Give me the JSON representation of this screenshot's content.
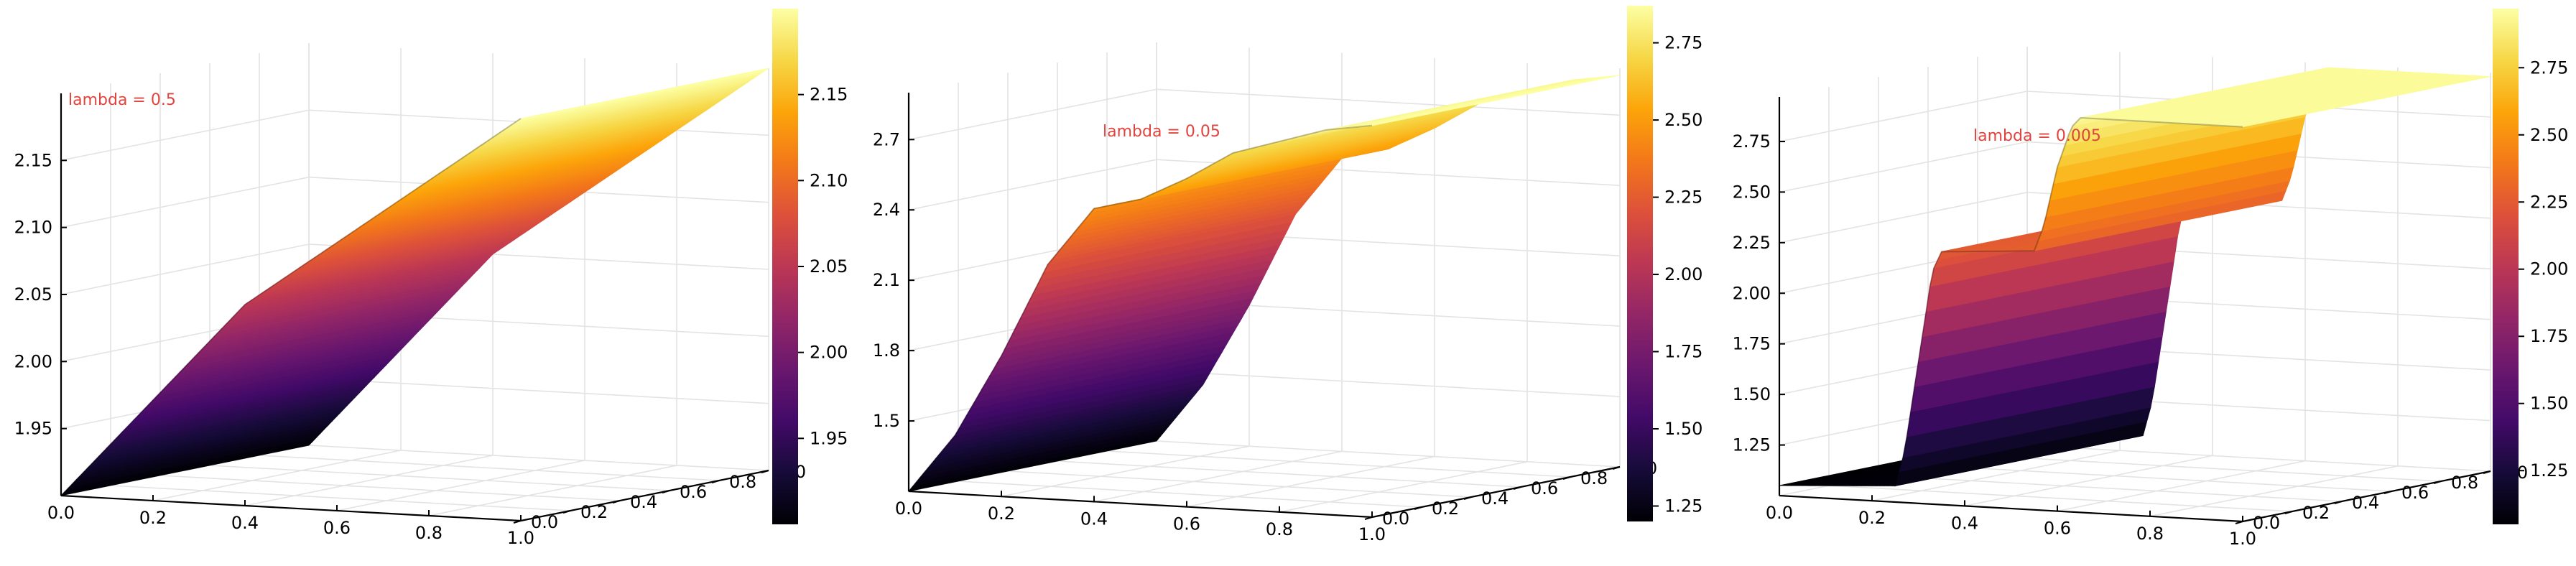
{
  "colors": {
    "annotation": "#e0443e",
    "grid": "#e3e3e3",
    "colormap": "inferno"
  },
  "chart_data": [
    {
      "type": "surface",
      "annotation": "lambda = 0.5",
      "x_ticks": [
        "0.0",
        "0.2",
        "0.4",
        "0.6",
        "0.8",
        "1.0"
      ],
      "y_ticks": [
        "0.0",
        "0.2",
        "0.4",
        "0.6",
        "0.8",
        "1.0"
      ],
      "z_ticks": [
        "1.95",
        "2.00",
        "2.05",
        "2.10",
        "2.15"
      ],
      "z_tick_values": [
        1.95,
        2.0,
        2.05,
        2.1,
        2.15
      ],
      "zlim": [
        1.9,
        2.2
      ],
      "colorbar_ticks": [
        "1.95",
        "2.00",
        "2.05",
        "2.10",
        "2.15"
      ],
      "colorbar_tick_values": [
        1.95,
        2.0,
        2.05,
        2.1,
        2.15
      ],
      "colorbar_range": [
        1.9,
        2.2
      ],
      "profile_x": [
        0.0,
        0.4,
        0.6,
        1.0
      ],
      "profile_z": [
        1.9,
        2.05,
        2.1,
        2.2
      ]
    },
    {
      "type": "surface",
      "annotation": "lambda = 0.05",
      "x_ticks": [
        "0.0",
        "0.2",
        "0.4",
        "0.6",
        "0.8",
        "1.0"
      ],
      "y_ticks": [
        "0.0",
        "0.2",
        "0.4",
        "0.6",
        "0.8",
        "1.0"
      ],
      "z_ticks": [
        "1.5",
        "1.8",
        "2.1",
        "2.4",
        "2.7"
      ],
      "z_tick_values": [
        1.5,
        1.8,
        2.1,
        2.4,
        2.7
      ],
      "zlim": [
        1.2,
        2.9
      ],
      "colorbar_ticks": [
        "1.25",
        "1.50",
        "1.75",
        "2.00",
        "2.25",
        "2.50",
        "2.75"
      ],
      "colorbar_tick_values": [
        1.25,
        1.5,
        1.75,
        2.0,
        2.25,
        2.5,
        2.75
      ],
      "colorbar_range": [
        1.2,
        2.87
      ],
      "profile_x": [
        0.0,
        0.1,
        0.2,
        0.3,
        0.4,
        0.5,
        0.6,
        0.7,
        0.8,
        0.9,
        1.0
      ],
      "profile_z": [
        1.2,
        1.45,
        1.8,
        2.2,
        2.45,
        2.5,
        2.6,
        2.72,
        2.78,
        2.84,
        2.87
      ]
    },
    {
      "type": "surface",
      "annotation": "lambda = 0.005",
      "x_ticks": [
        "0.0",
        "0.2",
        "0.4",
        "0.6",
        "0.8",
        "1.0"
      ],
      "y_ticks": [
        "0.0",
        "0.2",
        "0.4",
        "0.6",
        "0.8",
        "1.0"
      ],
      "z_ticks": [
        "1.25",
        "1.50",
        "1.75",
        "2.00",
        "2.25",
        "2.50",
        "2.75"
      ],
      "z_tick_values": [
        1.25,
        1.5,
        1.75,
        2.0,
        2.25,
        2.5,
        2.75
      ],
      "zlim": [
        1.0,
        2.97
      ],
      "colorbar_ticks": [
        "1.25",
        "1.50",
        "1.75",
        "2.00",
        "2.25",
        "2.50",
        "2.75"
      ],
      "colorbar_tick_values": [
        1.25,
        1.5,
        1.75,
        2.0,
        2.25,
        2.5,
        2.75
      ],
      "colorbar_range": [
        1.05,
        2.97
      ],
      "profile_x": [
        0.0,
        0.25,
        0.27,
        0.3,
        0.33,
        0.35,
        0.55,
        0.57,
        0.6,
        0.63,
        0.65,
        1.0
      ],
      "profile_z": [
        1.05,
        1.08,
        1.25,
        1.7,
        2.15,
        2.25,
        2.28,
        2.4,
        2.7,
        2.9,
        2.95,
        2.95
      ]
    }
  ]
}
